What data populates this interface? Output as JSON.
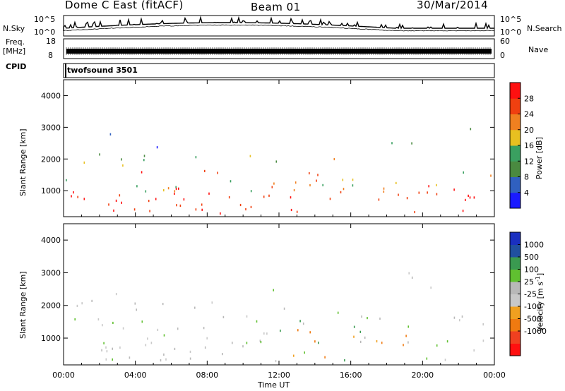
{
  "header": {
    "title": "Dome C East (fitACF)",
    "beam": "Beam 01",
    "date": "30/Mar/2014"
  },
  "top_strip": {
    "left_label": "N.Sky",
    "right_label": "N.Search",
    "y_ticks": [
      "10^5",
      "10^0"
    ],
    "right_ticks": [
      "10^5",
      "10^0"
    ]
  },
  "freq_strip": {
    "left_label_1": "Freq.",
    "left_label_2": "[MHz]",
    "right_label": "Nave",
    "y_ticks": [
      "18",
      "8"
    ],
    "right_ticks": [
      "60",
      "0"
    ]
  },
  "cpid": {
    "label": "CPID",
    "text": "twofsound 3501"
  },
  "colors": {
    "power_scale": [
      "#1a1aff",
      "#3060c0",
      "#4a8a40",
      "#3aa060",
      "#e8c020",
      "#f08020",
      "#f04010",
      "#ff1010"
    ],
    "velocity_scale": [
      "#ff1010",
      "#f04020",
      "#f07a10",
      "#f0a020",
      "#c8c8c8",
      "#b8b8b8",
      "#60c030",
      "#3a9a50",
      "#2050a0",
      "#1a30c0"
    ]
  },
  "chart_data": [
    {
      "type": "heatmap",
      "title": "",
      "ylabel": "Slant Range [km]",
      "xlabel": "",
      "ylim": [
        180,
        4500
      ],
      "y_ticks": [
        "1000",
        "2000",
        "3000",
        "4000"
      ],
      "x_ticks": [
        "00:00",
        "04:00",
        "08:00",
        "12:00",
        "16:00",
        "20:00",
        "00:00"
      ],
      "colorbar": {
        "label": "Power [dB]",
        "ticks": [
          "4",
          "8",
          "12",
          "16",
          "20",
          "24",
          "28"
        ]
      }
    },
    {
      "type": "heatmap",
      "title": "",
      "ylabel": "Slant Range [km]",
      "xlabel": "Time UT",
      "ylim": [
        180,
        4500
      ],
      "y_ticks": [
        "1000",
        "2000",
        "3000",
        "4000"
      ],
      "x_ticks": [
        "00:00",
        "04:00",
        "08:00",
        "12:00",
        "16:00",
        "20:00",
        "00:00"
      ],
      "colorbar": {
        "label": "Velocity [m s^-1]",
        "ticks": [
          "1000",
          "500",
          "100",
          "25",
          "-25",
          "-100",
          "-500",
          "-1000"
        ]
      }
    }
  ]
}
